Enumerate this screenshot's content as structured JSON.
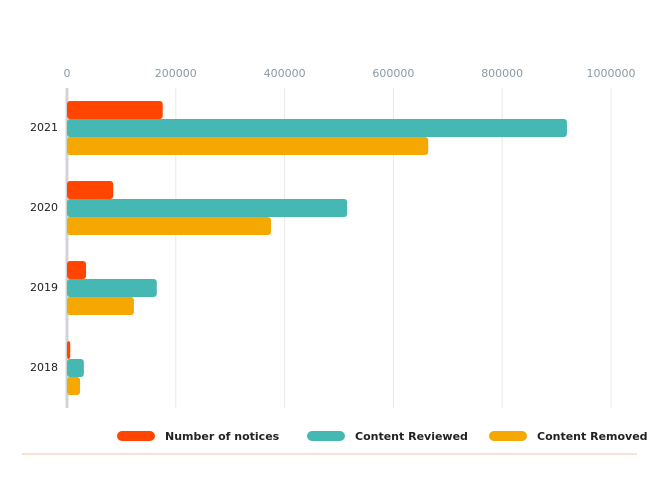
{
  "chart_data": {
    "type": "barh",
    "categories": [
      "2021",
      "2020",
      "2019",
      "2018"
    ],
    "series": [
      {
        "name": "Number of notices",
        "color": "#ff4500",
        "values": [
          176000,
          85000,
          35000,
          6000
        ]
      },
      {
        "name": "Content Reviewed",
        "color": "#46b8b4",
        "values": [
          919000,
          515000,
          165000,
          31000
        ]
      },
      {
        "name": "Content Removed",
        "color": "#f5a800",
        "values": [
          664000,
          375000,
          123000,
          24000
        ]
      }
    ],
    "xlim": [
      0,
      1000000
    ],
    "xticks": [
      0,
      200000,
      400000,
      600000,
      800000,
      1000000
    ],
    "grid": true
  }
}
